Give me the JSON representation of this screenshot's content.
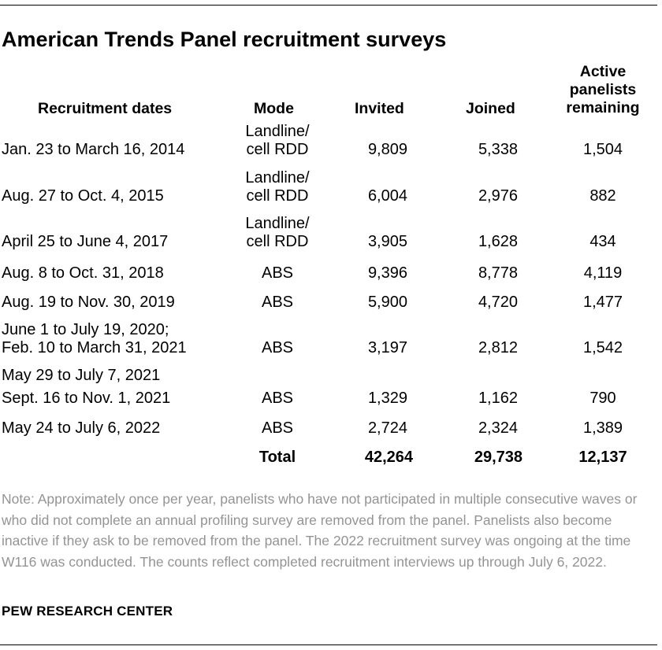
{
  "title": "American Trends Panel recruitment surveys",
  "headers": {
    "dates": "Recruitment dates",
    "mode": "Mode",
    "invited": "Invited",
    "joined": "Joined",
    "active": "Active panelists remaining"
  },
  "rows": [
    {
      "dates": [
        "Jan. 23 to March 16, 2014"
      ],
      "mode": [
        "Landline/",
        "cell RDD"
      ],
      "invited": "9,809",
      "joined": "5,338",
      "active": "1,504"
    },
    {
      "dates": [
        "Aug. 27 to Oct. 4, 2015"
      ],
      "mode": [
        "Landline/",
        "cell RDD"
      ],
      "invited": "6,004",
      "joined": "2,976",
      "active": "882"
    },
    {
      "dates": [
        "April 25 to June 4, 2017"
      ],
      "mode": [
        "Landline/",
        "cell RDD"
      ],
      "invited": "3,905",
      "joined": "1,628",
      "active": "434"
    },
    {
      "dates": [
        "Aug. 8 to Oct. 31, 2018"
      ],
      "mode": [
        "ABS"
      ],
      "invited": "9,396",
      "joined": "8,778",
      "active": "4,119"
    },
    {
      "dates": [
        "Aug. 19 to Nov. 30, 2019"
      ],
      "mode": [
        "ABS"
      ],
      "invited": "5,900",
      "joined": "4,720",
      "active": "1,477"
    },
    {
      "dates": [
        "June 1 to July 19, 2020;",
        "Feb. 10 to March 31, 2021"
      ],
      "mode": [
        "ABS"
      ],
      "invited": "3,197",
      "joined": "2,812",
      "active": "1,542"
    },
    {
      "dates": [
        "May 29 to July 7, 2021",
        "Sept. 16 to Nov. 1, 2021"
      ],
      "mode": [
        "ABS"
      ],
      "invited": "1,329",
      "joined": "1,162",
      "active": "790"
    },
    {
      "dates": [
        "May 24 to July 6, 2022"
      ],
      "mode": [
        "ABS"
      ],
      "invited": "2,724",
      "joined": "2,324",
      "active": "1,389"
    }
  ],
  "total": {
    "label": "Total",
    "invited": "42,264",
    "joined": "29,738",
    "active": "12,137"
  },
  "note": "Note: Approximately once per year, panelists who have not participated in multiple consecutive waves or who did not complete an annual profiling survey are removed from the panel. Panelists also become inactive if they ask to be removed from the panel.  The 2022 recruitment survey was ongoing at the time W116 was conducted. The counts reflect completed recruitment interviews up through July 6, 2022.",
  "source": "PEW RESEARCH CENTER"
}
